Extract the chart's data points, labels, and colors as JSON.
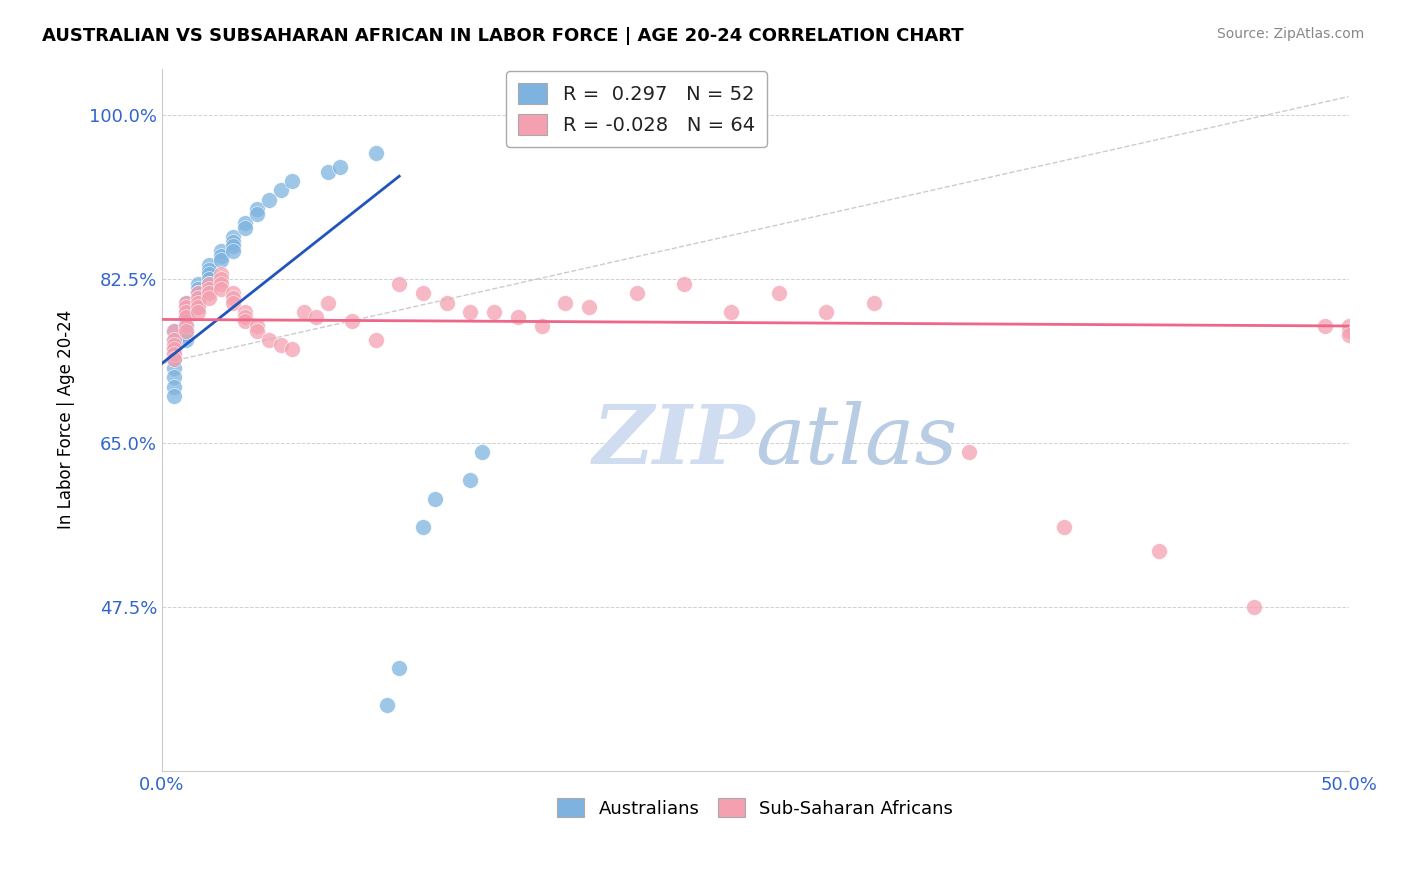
{
  "title": "AUSTRALIAN VS SUBSAHARAN AFRICAN IN LABOR FORCE | AGE 20-24 CORRELATION CHART",
  "source": "Source: ZipAtlas.com",
  "ylabel": "In Labor Force | Age 20-24",
  "xlim": [
    0.0,
    0.5
  ],
  "ylim": [
    0.3,
    1.05
  ],
  "yticks": [
    0.475,
    0.65,
    0.825,
    1.0
  ],
  "ytick_labels": [
    "47.5%",
    "65.0%",
    "82.5%",
    "100.0%"
  ],
  "xticks": [
    0.0,
    0.05,
    0.1,
    0.15,
    0.2,
    0.25,
    0.3,
    0.35,
    0.4,
    0.45,
    0.5
  ],
  "xtick_labels": [
    "0.0%",
    "",
    "",
    "",
    "",
    "",
    "",
    "",
    "",
    "",
    "50.0%"
  ],
  "legend_R_blue": "0.297",
  "legend_N_blue": "52",
  "legend_R_pink": "-0.028",
  "legend_N_pink": "64",
  "blue_color": "#7EB3E0",
  "pink_color": "#F4A0B0",
  "trendline_blue_color": "#2255BB",
  "trendline_pink_color": "#EE6688",
  "watermark_color": "#D0DCF0",
  "blue_x": [
    0.005,
    0.005,
    0.005,
    0.005,
    0.005,
    0.005,
    0.005,
    0.005,
    0.005,
    0.005,
    0.01,
    0.01,
    0.01,
    0.01,
    0.01,
    0.01,
    0.01,
    0.01,
    0.015,
    0.015,
    0.015,
    0.015,
    0.015,
    0.015,
    0.02,
    0.02,
    0.02,
    0.02,
    0.02,
    0.025,
    0.025,
    0.025,
    0.03,
    0.03,
    0.03,
    0.03,
    0.035,
    0.035,
    0.04,
    0.04,
    0.045,
    0.05,
    0.055,
    0.07,
    0.075,
    0.09,
    0.095,
    0.1,
    0.11,
    0.115,
    0.13,
    0.135
  ],
  "blue_y": [
    0.77,
    0.76,
    0.755,
    0.75,
    0.745,
    0.74,
    0.73,
    0.72,
    0.71,
    0.7,
    0.8,
    0.79,
    0.785,
    0.78,
    0.775,
    0.77,
    0.765,
    0.76,
    0.82,
    0.815,
    0.81,
    0.805,
    0.8,
    0.795,
    0.84,
    0.835,
    0.83,
    0.825,
    0.82,
    0.855,
    0.85,
    0.845,
    0.87,
    0.865,
    0.86,
    0.855,
    0.885,
    0.88,
    0.9,
    0.895,
    0.91,
    0.92,
    0.93,
    0.94,
    0.945,
    0.96,
    0.37,
    0.41,
    0.56,
    0.59,
    0.61,
    0.64
  ],
  "pink_x": [
    0.005,
    0.005,
    0.005,
    0.005,
    0.005,
    0.005,
    0.01,
    0.01,
    0.01,
    0.01,
    0.01,
    0.01,
    0.015,
    0.015,
    0.015,
    0.015,
    0.015,
    0.02,
    0.02,
    0.02,
    0.02,
    0.025,
    0.025,
    0.025,
    0.025,
    0.03,
    0.03,
    0.03,
    0.035,
    0.035,
    0.035,
    0.04,
    0.04,
    0.045,
    0.05,
    0.055,
    0.06,
    0.065,
    0.07,
    0.08,
    0.09,
    0.1,
    0.11,
    0.12,
    0.13,
    0.14,
    0.15,
    0.16,
    0.17,
    0.18,
    0.2,
    0.22,
    0.24,
    0.26,
    0.28,
    0.3,
    0.34,
    0.38,
    0.42,
    0.46,
    0.49,
    0.5,
    0.5,
    0.5
  ],
  "pink_y": [
    0.77,
    0.76,
    0.755,
    0.75,
    0.745,
    0.74,
    0.8,
    0.795,
    0.79,
    0.785,
    0.775,
    0.77,
    0.81,
    0.805,
    0.8,
    0.795,
    0.79,
    0.82,
    0.815,
    0.81,
    0.805,
    0.83,
    0.825,
    0.82,
    0.815,
    0.81,
    0.805,
    0.8,
    0.79,
    0.785,
    0.78,
    0.775,
    0.77,
    0.76,
    0.755,
    0.75,
    0.79,
    0.785,
    0.8,
    0.78,
    0.76,
    0.82,
    0.81,
    0.8,
    0.79,
    0.79,
    0.785,
    0.775,
    0.8,
    0.795,
    0.81,
    0.82,
    0.79,
    0.81,
    0.79,
    0.8,
    0.64,
    0.56,
    0.535,
    0.475,
    0.775,
    0.775,
    0.77,
    0.765
  ],
  "blue_trendline_x": [
    0.0,
    0.1
  ],
  "blue_trendline_y": [
    0.735,
    0.935
  ],
  "pink_trendline_x": [
    0.0,
    0.5
  ],
  "pink_trendline_y": [
    0.782,
    0.775
  ]
}
